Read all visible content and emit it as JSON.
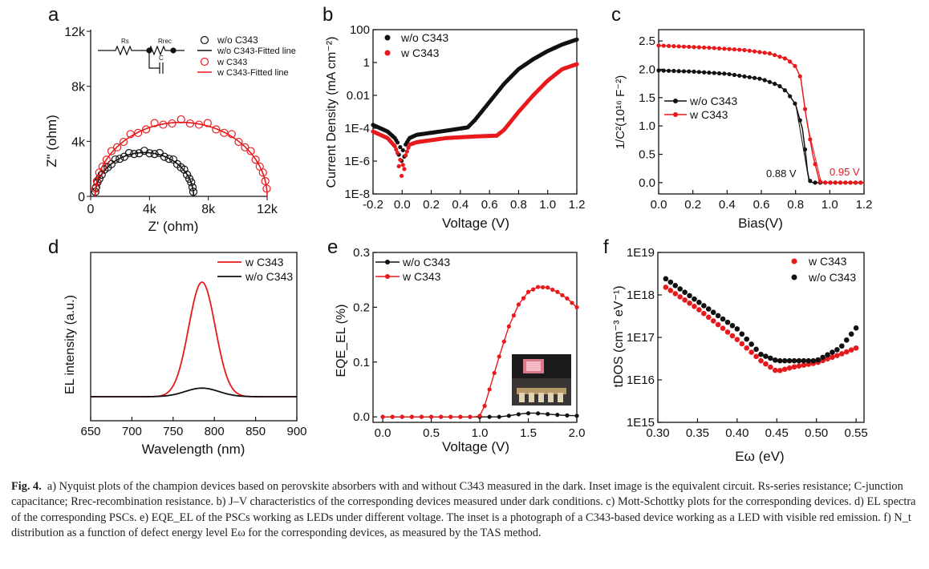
{
  "colors": {
    "black": "#111111",
    "red": "#e8191c"
  },
  "panel_letters": [
    "a",
    "b",
    "c",
    "d",
    "e",
    "f"
  ],
  "chart_data": [
    {
      "id": "a",
      "type": "scatter",
      "xlabel": "Z' (ohm)",
      "ylabel": "Z\" (ohm)",
      "xlim": [
        0,
        12000
      ],
      "ylim": [
        0,
        12000
      ],
      "xticks": [
        "0",
        "4k",
        "8k",
        "12k"
      ],
      "yticks": [
        "0",
        "4k",
        "8k",
        "12k"
      ],
      "legend": [
        "w/o C343",
        "w/o C343-Fitted line",
        "w C343",
        "w C343-Fitted line"
      ],
      "circuit_labels": [
        "Rs",
        "Rrec",
        "C"
      ],
      "series": [
        {
          "name": "w/o C343",
          "color": "black",
          "marker": "open-circle",
          "r0": 300,
          "r1": 7000,
          "theta_max": 1.0
        },
        {
          "name": "w C343",
          "color": "red",
          "marker": "open-circle",
          "r0": 300,
          "r1": 12000,
          "theta_max": 1.0
        }
      ]
    },
    {
      "id": "b",
      "type": "scatter",
      "xlabel": "Voltage (V)",
      "ylabel": "Current Density (mA cm⁻²)",
      "xlim": [
        -0.2,
        1.2
      ],
      "ylim_log10": [
        -8,
        2
      ],
      "xticks": [
        "-0.2",
        "0.0",
        "0.2",
        "0.4",
        "0.6",
        "0.8",
        "1.0",
        "1.2"
      ],
      "yticks": [
        "1E-8",
        "1E-6",
        "1E-4",
        "0.01",
        "1",
        "100"
      ],
      "legend": [
        "w/o C343",
        "w C343"
      ],
      "series": [
        {
          "name": "w/o C343",
          "color": "black",
          "knots": [
            [
              -0.2,
              -3.8
            ],
            [
              -0.1,
              -4.2
            ],
            [
              -0.05,
              -4.6
            ],
            [
              -0.01,
              -5.2
            ],
            [
              0.0,
              -5.5
            ],
            [
              0.01,
              -5.2
            ],
            [
              0.05,
              -4.6
            ],
            [
              0.1,
              -4.4
            ],
            [
              0.3,
              -4.15
            ],
            [
              0.45,
              -3.95
            ],
            [
              0.5,
              -3.5
            ],
            [
              0.6,
              -2.4
            ],
            [
              0.7,
              -1.3
            ],
            [
              0.8,
              -0.4
            ],
            [
              0.9,
              0.2
            ],
            [
              1.0,
              0.7
            ],
            [
              1.1,
              1.1
            ],
            [
              1.2,
              1.4
            ]
          ]
        },
        {
          "name": "w C343",
          "color": "red",
          "knots": [
            [
              -0.2,
              -4.2
            ],
            [
              -0.1,
              -4.6
            ],
            [
              -0.05,
              -5.1
            ],
            [
              -0.01,
              -6.0
            ],
            [
              0.0,
              -6.5
            ],
            [
              0.01,
              -6.0
            ],
            [
              0.05,
              -5.0
            ],
            [
              0.1,
              -4.85
            ],
            [
              0.3,
              -4.6
            ],
            [
              0.5,
              -4.5
            ],
            [
              0.65,
              -4.45
            ],
            [
              0.7,
              -4.1
            ],
            [
              0.8,
              -3.0
            ],
            [
              0.9,
              -2.0
            ],
            [
              1.0,
              -1.1
            ],
            [
              1.1,
              -0.4
            ],
            [
              1.2,
              -0.1
            ]
          ]
        }
      ]
    },
    {
      "id": "c",
      "type": "line",
      "xlabel": "Bias(V)",
      "ylabel": "1/C²(10¹⁶ F⁻²)",
      "xlim": [
        0,
        1.2
      ],
      "ylim": [
        -0.2,
        2.7
      ],
      "xticks": [
        "0.0",
        "0.2",
        "0.4",
        "0.6",
        "0.8",
        "1.0",
        "1.2"
      ],
      "yticks": [
        "0.0",
        "0.5",
        "1.0",
        "1.5",
        "2.0",
        "2.5"
      ],
      "legend": [
        "w/o C343",
        "w C343"
      ],
      "annotations": [
        "0.88 V",
        "0.95 V"
      ],
      "series": [
        {
          "name": "w/o C343",
          "color": "black",
          "knots": [
            [
              0,
              1.98
            ],
            [
              0.2,
              1.96
            ],
            [
              0.4,
              1.92
            ],
            [
              0.6,
              1.83
            ],
            [
              0.7,
              1.72
            ],
            [
              0.75,
              1.6
            ],
            [
              0.8,
              1.38
            ],
            [
              0.84,
              0.95
            ],
            [
              0.86,
              0.48
            ],
            [
              0.875,
              0.05
            ],
            [
              0.9,
              0.0
            ],
            [
              1.2,
              0.0
            ]
          ]
        },
        {
          "name": "w C343",
          "color": "red",
          "knots": [
            [
              0,
              2.42
            ],
            [
              0.3,
              2.38
            ],
            [
              0.5,
              2.34
            ],
            [
              0.65,
              2.28
            ],
            [
              0.75,
              2.18
            ],
            [
              0.8,
              2.05
            ],
            [
              0.83,
              1.85
            ],
            [
              0.86,
              1.2
            ],
            [
              0.9,
              0.5
            ],
            [
              0.94,
              0.02
            ],
            [
              0.97,
              0.0
            ],
            [
              1.2,
              0.0
            ]
          ]
        }
      ]
    },
    {
      "id": "d",
      "type": "line",
      "xlabel": "Wavelength (nm)",
      "ylabel": "EL intensity (a.u.)",
      "xlim": [
        650,
        900
      ],
      "xticks": [
        "650",
        "700",
        "750",
        "800",
        "850",
        "900"
      ],
      "legend": [
        "w C343",
        "w/o C343"
      ],
      "series": [
        {
          "name": "w C343",
          "color": "red",
          "peak_nm": 785,
          "fwhm_nm": 38,
          "amplitude": 1.0
        },
        {
          "name": "w/o C343",
          "color": "black",
          "peak_nm": 785,
          "fwhm_nm": 48,
          "amplitude": 0.075
        }
      ]
    },
    {
      "id": "e",
      "type": "line",
      "xlabel": "Voltage (V)",
      "ylabel": "EQE_EL (%)",
      "xlim": [
        -0.1,
        2.0
      ],
      "ylim": [
        -0.01,
        0.3
      ],
      "xticks": [
        "0.0",
        "0.5",
        "1.0",
        "1.5",
        "2.0"
      ],
      "yticks": [
        "0.0",
        "0.1",
        "0.2",
        "0.3"
      ],
      "legend": [
        "w/o C343",
        "w C343"
      ],
      "series": [
        {
          "name": "w/o C343",
          "color": "black",
          "knots": [
            [
              0,
              0
            ],
            [
              1.2,
              0
            ],
            [
              1.3,
              0.002
            ],
            [
              1.45,
              0.006
            ],
            [
              1.55,
              0.007
            ],
            [
              1.7,
              0.005
            ],
            [
              1.85,
              0.003
            ],
            [
              2.0,
              0.002
            ]
          ]
        },
        {
          "name": "w C343",
          "color": "red",
          "knots": [
            [
              0,
              0
            ],
            [
              0.95,
              0
            ],
            [
              1.0,
              0.002
            ],
            [
              1.05,
              0.02
            ],
            [
              1.1,
              0.05
            ],
            [
              1.2,
              0.11
            ],
            [
              1.3,
              0.165
            ],
            [
              1.4,
              0.205
            ],
            [
              1.5,
              0.228
            ],
            [
              1.6,
              0.237
            ],
            [
              1.7,
              0.236
            ],
            [
              1.8,
              0.228
            ],
            [
              1.9,
              0.216
            ],
            [
              2.0,
              0.2
            ]
          ]
        }
      ]
    },
    {
      "id": "f",
      "type": "scatter",
      "xlabel": "Eω (eV)",
      "ylabel": "tDOS (cm⁻³ eV⁻¹)",
      "xlim": [
        0.3,
        0.56
      ],
      "ylim_log10": [
        15,
        19
      ],
      "xticks": [
        "0.30",
        "0.35",
        "0.40",
        "0.45",
        "0.50",
        "0.55"
      ],
      "yticks": [
        "1E15",
        "1E16",
        "1E17",
        "1E18",
        "1E19"
      ],
      "legend": [
        "w C343",
        "w/o C343"
      ],
      "series": [
        {
          "name": "w C343",
          "color": "red",
          "knots": [
            [
              0.31,
              18.18
            ],
            [
              0.35,
              17.68
            ],
            [
              0.4,
              16.95
            ],
            [
              0.43,
              16.45
            ],
            [
              0.45,
              16.2
            ],
            [
              0.47,
              16.3
            ],
            [
              0.5,
              16.4
            ],
            [
              0.53,
              16.6
            ],
            [
              0.55,
              16.75
            ]
          ]
        },
        {
          "name": "w/o C343",
          "color": "black",
          "knots": [
            [
              0.31,
              18.38
            ],
            [
              0.35,
              17.85
            ],
            [
              0.4,
              17.2
            ],
            [
              0.43,
              16.6
            ],
            [
              0.45,
              16.45
            ],
            [
              0.47,
              16.45
            ],
            [
              0.5,
              16.45
            ],
            [
              0.53,
              16.75
            ],
            [
              0.55,
              17.22
            ]
          ]
        }
      ]
    }
  ],
  "caption": {
    "label": "Fig. 4.",
    "text": "a) Nyquist plots of the champion devices based on perovskite absorbers with and without C343 measured in the dark. Inset image is the equivalent circuit. Rs-series resistance; C-junction capacitance; Rrec-recombination resistance. b) J–V characteristics of the corresponding devices measured under dark conditions. c) Mott-Schottky plots for the corresponding devices. d) EL spectra of the corresponding PSCs. e) EQE_EL of the PSCs working as LEDs under different voltage. The inset is a photograph of a C343-based device working as a LED with visible red emission. f) N_t distribution as a function of defect energy level Eω for the corresponding devices, as measured by the TAS method."
  }
}
